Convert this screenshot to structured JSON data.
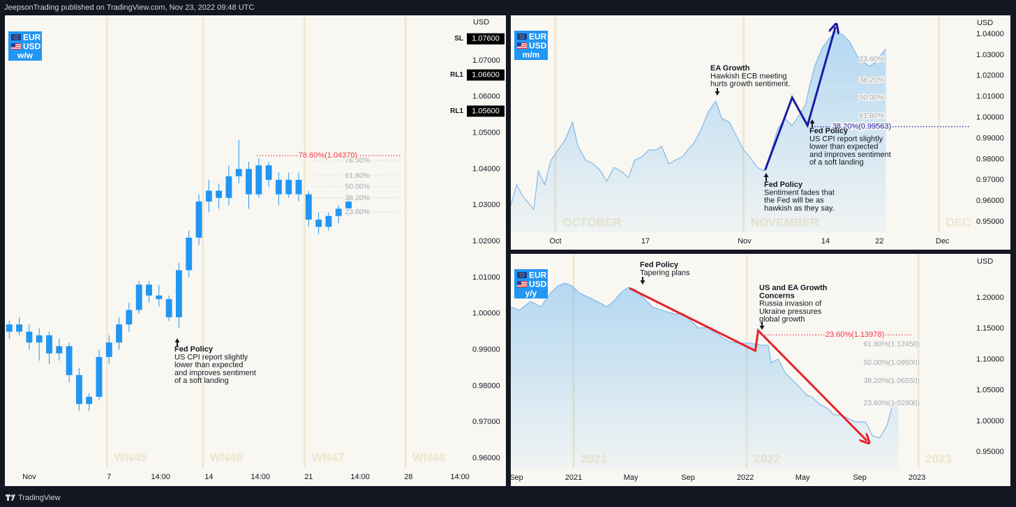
{
  "header": {
    "text": "JeepsonTrading published on TradingView.com, Nov 23, 2022 09:48 UTC"
  },
  "footer": {
    "text": "TradingView"
  },
  "chart_data": [
    {
      "type": "candlestick",
      "badge": [
        "EUR",
        "USD",
        "w/w"
      ],
      "y_unit": "USD",
      "color": "#2196f3",
      "x": [
        -1,
        -0.5,
        0,
        0.5,
        1,
        1.5,
        2,
        2.5,
        3,
        3.5,
        4,
        4.5,
        5,
        5.5,
        6,
        6.5,
        7,
        7.5,
        8,
        8.5,
        9,
        9.5,
        10,
        10.5,
        11,
        11.5,
        12,
        12.5,
        13,
        13.5,
        14,
        14.5,
        15,
        15.5,
        16
      ],
      "open": [
        0.995,
        0.997,
        0.995,
        0.992,
        0.994,
        0.989,
        0.991,
        0.983,
        0.975,
        0.977,
        0.988,
        0.992,
        0.997,
        1.001,
        1.008,
        1.005,
        1.004,
        0.999,
        1.012,
        1.021,
        1.031,
        1.034,
        1.032,
        1.038,
        1.04,
        1.033,
        1.041,
        1.037,
        1.033,
        1.037,
        1.033,
        1.026,
        1.024,
        1.027,
        1.029
      ],
      "high": [
        0.998,
        0.999,
        0.997,
        0.996,
        0.995,
        0.993,
        0.992,
        0.985,
        0.978,
        0.99,
        0.994,
        0.999,
        1.003,
        1.009,
        1.009,
        1.008,
        1.005,
        1.014,
        1.023,
        1.033,
        1.037,
        1.036,
        1.041,
        1.048,
        1.042,
        1.043,
        1.042,
        1.039,
        1.039,
        1.039,
        1.034,
        1.028,
        1.028,
        1.03,
        1.033
      ],
      "low": [
        0.993,
        0.994,
        0.99,
        0.987,
        0.986,
        0.987,
        0.981,
        0.973,
        0.973,
        0.976,
        0.986,
        0.99,
        0.995,
        1.0,
        1.003,
        1.002,
        0.998,
        0.996,
        1.01,
        1.019,
        1.028,
        1.029,
        1.03,
        1.036,
        1.029,
        1.032,
        1.035,
        1.03,
        1.032,
        1.031,
        1.024,
        1.022,
        1.023,
        1.025,
        1.027
      ],
      "close": [
        0.997,
        0.995,
        0.992,
        0.994,
        0.989,
        0.991,
        0.983,
        0.975,
        0.977,
        0.988,
        0.992,
        0.997,
        1.001,
        1.008,
        1.005,
        1.004,
        0.999,
        1.012,
        1.021,
        1.031,
        1.034,
        1.032,
        1.038,
        1.04,
        1.033,
        1.041,
        1.037,
        1.033,
        1.037,
        1.033,
        1.026,
        1.024,
        1.027,
        1.029,
        1.031
      ],
      "xlim": [
        -1.22,
        22.03
      ],
      "ylim": [
        0.9575,
        1.0825
      ],
      "xticks": [
        {
          "value": 0,
          "label": "Nov"
        },
        {
          "value": 4,
          "label": "7"
        },
        {
          "value": 6.58,
          "label": "14:00"
        },
        {
          "value": 9,
          "label": "14"
        },
        {
          "value": 11.58,
          "label": "14:00"
        },
        {
          "value": 14,
          "label": "21"
        },
        {
          "value": 16.58,
          "label": "14:00"
        },
        {
          "value": 19,
          "label": "28"
        },
        {
          "value": 21.58,
          "label": "14:00"
        }
      ],
      "yticks": [
        {
          "value": 1.07,
          "label": "1.07000"
        },
        {
          "value": 1.06,
          "label": "1.06000"
        },
        {
          "value": 1.05,
          "label": "1.05000"
        },
        {
          "value": 1.04,
          "label": "1.04000"
        },
        {
          "value": 1.03,
          "label": "1.03000"
        },
        {
          "value": 1.02,
          "label": "1.02000"
        },
        {
          "value": 1.01,
          "label": "1.01000"
        },
        {
          "value": 1.0,
          "label": "1.00000"
        },
        {
          "value": 0.99,
          "label": "0.99000"
        },
        {
          "value": 0.98,
          "label": "0.98000"
        },
        {
          "value": 0.97,
          "label": "0.97000"
        },
        {
          "value": 0.96,
          "label": "0.96000"
        }
      ],
      "price_labels": [
        {
          "name": "SL",
          "value": 1.076,
          "label": "1.07600"
        },
        {
          "name": "RL1",
          "value": 1.066,
          "label": "1.06600"
        },
        {
          "name": "RL1",
          "value": 1.056,
          "label": "1.05600"
        }
      ],
      "periods": [
        {
          "label": "WN45",
          "start": 3.9
        },
        {
          "label": "WN46",
          "start": 8.7
        },
        {
          "label": "WN47",
          "start": 13.8
        },
        {
          "label": "WN48",
          "start": 18.85
        }
      ],
      "fib": {
        "label": "78.60%(1.04370)",
        "value": 1.0437,
        "color": "#f23645",
        "levels": [
          {
            "label": "78.60%",
            "value": 1.0424
          },
          {
            "label": "61.80%",
            "value": 1.0381
          },
          {
            "label": "50.00%",
            "value": 1.0351
          },
          {
            "label": "38.20%",
            "value": 1.032
          },
          {
            "label": "23.60%",
            "value": 1.0281
          }
        ]
      },
      "annotations": [
        {
          "title": [
            "Fed Policy"
          ],
          "text": [
            "US CPI report slightly",
            "lower than expected",
            "and improves sentiment",
            "of a soft landing"
          ]
        }
      ]
    },
    {
      "type": "area",
      "badge": [
        "EUR",
        "USD",
        "m/m"
      ],
      "y_unit": "USD",
      "color": "#6faee8",
      "x": [
        -5.0,
        -4.3,
        -3.7,
        -3.1,
        -2.4,
        -1.9,
        -1.2,
        -0.5,
        0.3,
        1.1,
        1.9,
        2.5,
        3.4,
        4.2,
        5.0,
        5.7,
        6.5,
        7.3,
        8.1,
        8.8,
        9.6,
        10.4,
        11.2,
        11.8,
        12.6,
        13.3,
        14.1,
        14.7,
        15.4,
        16.2,
        17.0,
        17.8,
        18.5,
        19.3,
        20.1,
        20.9,
        21.6,
        22.4,
        23.2,
        24.0,
        24.7,
        25.5,
        26.3,
        27.1,
        27.8,
        28.2,
        28.8,
        29.6,
        30.4,
        31.2,
        31.9,
        32.7,
        33.5,
        34.3,
        35.0,
        35.8,
        36.7
      ],
      "values": [
        0.9574,
        0.9678,
        0.9627,
        0.9594,
        0.956,
        0.9744,
        0.9678,
        0.9795,
        0.9845,
        0.9895,
        0.9979,
        0.9862,
        0.9795,
        0.9778,
        0.9744,
        0.9694,
        0.9761,
        0.9744,
        0.9711,
        0.9795,
        0.9811,
        0.9845,
        0.9845,
        0.9862,
        0.9778,
        0.9795,
        0.9811,
        0.9845,
        0.9878,
        0.9945,
        1.0029,
        1.0079,
        0.9995,
        0.9979,
        0.9912,
        0.9845,
        0.9811,
        0.9761,
        0.9744,
        0.9845,
        0.9945,
        0.9995,
        0.9962,
        1.0012,
        1.0062,
        1.0146,
        1.0246,
        1.033,
        1.038,
        1.0413,
        1.0397,
        1.0363,
        1.0296,
        1.0263,
        1.0246,
        1.028,
        1.033
      ],
      "xlim": [
        -4.96,
        46.05
      ],
      "ylim": [
        0.945,
        1.049
      ],
      "xticks": [
        {
          "value": 0,
          "label": "Oct"
        },
        {
          "value": 10,
          "label": "17"
        },
        {
          "value": 21,
          "label": "Nov"
        },
        {
          "value": 30,
          "label": "14"
        },
        {
          "value": 36,
          "label": "22"
        },
        {
          "value": 43,
          "label": "Dec"
        }
      ],
      "yticks": [
        {
          "value": 1.04,
          "label": "1.04000"
        },
        {
          "value": 1.03,
          "label": "1.03000"
        },
        {
          "value": 1.02,
          "label": "1.02000"
        },
        {
          "value": 1.01,
          "label": "1.01000"
        },
        {
          "value": 1.0,
          "label": "1.00000"
        },
        {
          "value": 0.99,
          "label": "0.99000"
        },
        {
          "value": 0.98,
          "label": "0.98000"
        },
        {
          "value": 0.97,
          "label": "0.97000"
        },
        {
          "value": 0.96,
          "label": "0.96000"
        },
        {
          "value": 0.95,
          "label": "0.95000"
        }
      ],
      "periods": [
        {
          "label": "OCTOBER",
          "start": 0
        },
        {
          "label": "NOVEMBER",
          "start": 20.9
        },
        {
          "label": "DEC",
          "start": 42.6
        }
      ],
      "trendline": {
        "color": "#1a1aa6",
        "x": [
          23.3,
          26.3,
          28.0,
          31.1
        ],
        "values": [
          0.9748,
          1.0096,
          0.9962,
          1.0434
        ]
      },
      "fib": {
        "label": "38.20%(0.99563)",
        "value": 0.99563,
        "color": "#1a1aa6",
        "levels": [
          {
            "label": "23.60%",
            "value": 1.028
          },
          {
            "label": "38.20%",
            "value": 1.0179
          },
          {
            "label": "50.00%",
            "value": 1.0096
          },
          {
            "label": "61.80%",
            "value": 1.0009
          }
        ]
      },
      "annotations": [
        {
          "title": [
            "EA Growth"
          ],
          "text": [
            "Hawkish ECB meeting",
            "hurts growth sentiment."
          ]
        },
        {
          "title": [
            "Fed Policy"
          ],
          "text": [
            "US CPI report slightly",
            "lower than expected",
            "and improves sentiment",
            "of a soft landing"
          ]
        },
        {
          "title": [
            "Fed Policy"
          ],
          "text": [
            "Sentiment fades that",
            "the Fed will be as",
            "hawkish as they say."
          ]
        }
      ]
    },
    {
      "type": "area",
      "badge": [
        "EUR",
        "USD",
        "y/y"
      ],
      "y_unit": "USD",
      "color": "#6faee8",
      "x": [
        -0.4,
        0.2,
        1.0,
        1.7,
        2.4,
        2.9,
        3.4,
        3.9,
        4.4,
        4.9,
        5.4,
        5.9,
        6.3,
        6.8,
        7.3,
        7.8,
        8.3,
        8.8,
        9.5,
        10.2,
        11.0,
        11.7,
        12.2,
        12.7,
        13.4,
        14.1,
        14.9,
        15.6,
        16.3,
        17.1,
        17.6,
        17.8,
        18.3,
        18.8,
        19.3,
        19.8,
        20.2,
        20.7,
        21.2,
        21.7,
        22.2,
        22.7,
        23.2,
        23.7,
        24.4,
        24.9,
        25.4,
        25.9,
        26.3,
        26.7
      ],
      "values": [
        1.1853,
        1.1796,
        1.1943,
        1.1853,
        1.2079,
        1.2192,
        1.2238,
        1.2192,
        1.2079,
        1.2023,
        1.1966,
        1.191,
        1.1853,
        1.1943,
        1.2079,
        1.217,
        1.2136,
        1.2023,
        1.1853,
        1.1796,
        1.174,
        1.174,
        1.1627,
        1.1514,
        1.1514,
        1.14,
        1.1287,
        1.1265,
        1.1265,
        1.1231,
        1.1231,
        1.0948,
        1.1005,
        1.0778,
        1.0665,
        1.0552,
        1.0439,
        1.0382,
        1.0269,
        1.0213,
        1.01,
        1.01,
        1.0043,
        0.9986,
        0.9986,
        0.976,
        0.9726,
        0.993,
        1.0269,
        1.0326
      ],
      "xlim": [
        -0.39,
        31.7
      ],
      "ylim": [
        0.9228,
        1.2713
      ],
      "xticks": [
        {
          "value": 0,
          "label": "Sep"
        },
        {
          "value": 4,
          "label": "2021"
        },
        {
          "value": 8,
          "label": "May"
        },
        {
          "value": 12,
          "label": "Sep"
        },
        {
          "value": 16,
          "label": "2022"
        },
        {
          "value": 20,
          "label": "May"
        },
        {
          "value": 24,
          "label": "Sep"
        },
        {
          "value": 28,
          "label": "2023"
        }
      ],
      "yticks": [
        {
          "value": 1.2,
          "label": "1.20000"
        },
        {
          "value": 1.15,
          "label": "1.15000"
        },
        {
          "value": 1.1,
          "label": "1.10000"
        },
        {
          "value": 1.05,
          "label": "1.05000"
        },
        {
          "value": 1.0,
          "label": "1.00000"
        },
        {
          "value": 0.95,
          "label": "0.95000"
        }
      ],
      "periods": [
        {
          "label": "2021",
          "start": 4
        },
        {
          "label": "2022",
          "start": 16.1
        },
        {
          "label": "2023",
          "start": 28.1
        }
      ],
      "trendline": {
        "color": "#e8202a",
        "x": [
          7.9,
          16.7,
          16.9,
          24.5
        ],
        "values": [
          1.2158,
          1.114,
          1.1468,
          0.968
        ]
      },
      "fib": {
        "label": "23.60%(1.13978)",
        "value": 1.13978,
        "color": "#f23645",
        "levels": [
          {
            "label": "61.80%(1.12450)",
            "value": 1.1245
          },
          {
            "label": "50.00%(1.09500)",
            "value": 1.095
          },
          {
            "label": "38.20%(1.06550)",
            "value": 1.0655
          },
          {
            "label": "23.60%(1.02900)",
            "value": 1.029
          }
        ]
      },
      "annotations": [
        {
          "title": [
            "Fed Policy"
          ],
          "text": [
            "Tapering plans"
          ]
        },
        {
          "title": [
            "US and EA Growth",
            "Concerns"
          ],
          "text": [
            "Russia invasion of",
            "Ukraine pressures",
            "global growth"
          ]
        }
      ]
    }
  ]
}
